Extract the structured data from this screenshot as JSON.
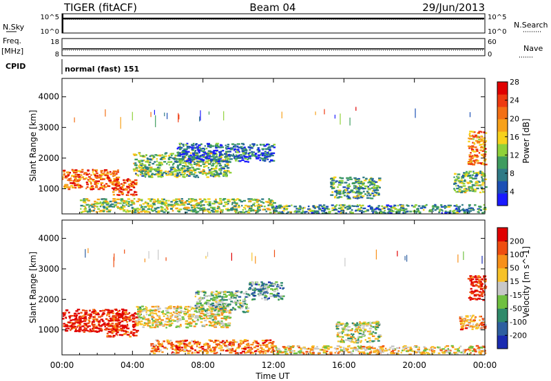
{
  "header": {
    "station": "TIGER (fitACF)",
    "beam": "Beam 04",
    "date": "29/Jun/2013"
  },
  "strip_labels": {
    "nsky": "N.Sky",
    "nsky_ticks": [
      "10^5",
      "10^0"
    ],
    "nsearch": "N.Search",
    "nsearch_ticks": [
      "10^5",
      "10^0"
    ],
    "freq_1": "Freq.",
    "freq_2": "[MHz]",
    "freq_ticks": [
      "18",
      "8"
    ],
    "nave": "Nave",
    "nave_ticks": [
      "60",
      "0"
    ],
    "cpid": "CPID",
    "cpid_value": "normal (fast) 151"
  },
  "chart_data": [
    {
      "type": "heatmap",
      "panel": "power",
      "ylabel": "Slant Range [km]",
      "ylim": [
        180,
        4600
      ],
      "yticks": [
        "1000",
        "2000",
        "3000",
        "4000"
      ],
      "colorbar_label": "Power [dB]",
      "colorbar_ticks": [
        "4",
        "8",
        "12",
        "16",
        "20",
        "24",
        "28"
      ],
      "colorbar_colors": [
        "#1a1aff",
        "#1c4fb5",
        "#2f7a86",
        "#3f9c5f",
        "#8fd13a",
        "#f7d21c",
        "#f7a11a",
        "#f36f15",
        "#ee3a10",
        "#e00000"
      ],
      "echo_regions": [
        {
          "t0": 0.0,
          "t1": 3.2,
          "r0": 1000,
          "r1": 1650,
          "level": 0.75
        },
        {
          "t0": 2.8,
          "t1": 4.2,
          "r0": 800,
          "r1": 1350,
          "level": 0.85
        },
        {
          "t0": 4.0,
          "t1": 9.5,
          "r0": 1400,
          "r1": 2200,
          "level": 0.4
        },
        {
          "t0": 6.5,
          "t1": 12.0,
          "r0": 1900,
          "r1": 2500,
          "level": 0.2
        },
        {
          "t0": 15.2,
          "t1": 18.0,
          "r0": 700,
          "r1": 1400,
          "level": 0.35
        },
        {
          "t0": 23.0,
          "t1": 24.0,
          "r0": 1800,
          "r1": 2900,
          "level": 0.7
        },
        {
          "t0": 22.2,
          "t1": 24.0,
          "r0": 900,
          "r1": 1600,
          "level": 0.4
        },
        {
          "t0": 1.0,
          "t1": 12.0,
          "r0": 250,
          "r1": 700,
          "level": 0.45
        },
        {
          "t0": 12.0,
          "t1": 24.0,
          "r0": 220,
          "r1": 500,
          "level": 0.3
        }
      ]
    },
    {
      "type": "heatmap",
      "panel": "velocity",
      "ylabel": "Slant Range [km]",
      "ylim": [
        180,
        4600
      ],
      "yticks": [
        "1000",
        "2000",
        "3000",
        "4000"
      ],
      "colorbar_label": "Velocity [m s^-1]",
      "colorbar_ticks": [
        "200",
        "100",
        "50",
        "15",
        "-15",
        "-50",
        "-100",
        "-200"
      ],
      "colorbar_colors": [
        "#1a2bb0",
        "#2e5fa0",
        "#2f8a6a",
        "#6fc040",
        "#c8c8c8",
        "#f7c228",
        "#f7901a",
        "#ee4d10",
        "#e00000"
      ],
      "echo_regions": [
        {
          "t0": 0.0,
          "t1": 3.6,
          "r0": 950,
          "r1": 1700,
          "level": 0.95
        },
        {
          "t0": 2.5,
          "t1": 4.2,
          "r0": 800,
          "r1": 1600,
          "level": 0.9
        },
        {
          "t0": 4.2,
          "t1": 9.5,
          "r0": 1100,
          "r1": 1800,
          "level": 0.55
        },
        {
          "t0": 7.5,
          "t1": 10.5,
          "r0": 1600,
          "r1": 2300,
          "level": 0.4
        },
        {
          "t0": 10.5,
          "t1": 12.5,
          "r0": 2000,
          "r1": 2600,
          "level": 0.3
        },
        {
          "t0": 15.5,
          "t1": 18.0,
          "r0": 600,
          "r1": 1300,
          "level": 0.5
        },
        {
          "t0": 23.0,
          "t1": 24.0,
          "r0": 2000,
          "r1": 2800,
          "level": 0.95
        },
        {
          "t0": 22.5,
          "t1": 24.0,
          "r0": 1000,
          "r1": 1500,
          "level": 0.7
        },
        {
          "t0": 5.0,
          "t1": 12.0,
          "r0": 250,
          "r1": 700,
          "level": 0.75
        },
        {
          "t0": 12.0,
          "t1": 24.0,
          "r0": 220,
          "r1": 500,
          "level": 0.6
        }
      ]
    }
  ],
  "time_axis": {
    "label": "Time UT",
    "ticks": [
      "00:00",
      "04:00",
      "08:00",
      "12:00",
      "16:00",
      "20:00",
      "00:00"
    ]
  }
}
